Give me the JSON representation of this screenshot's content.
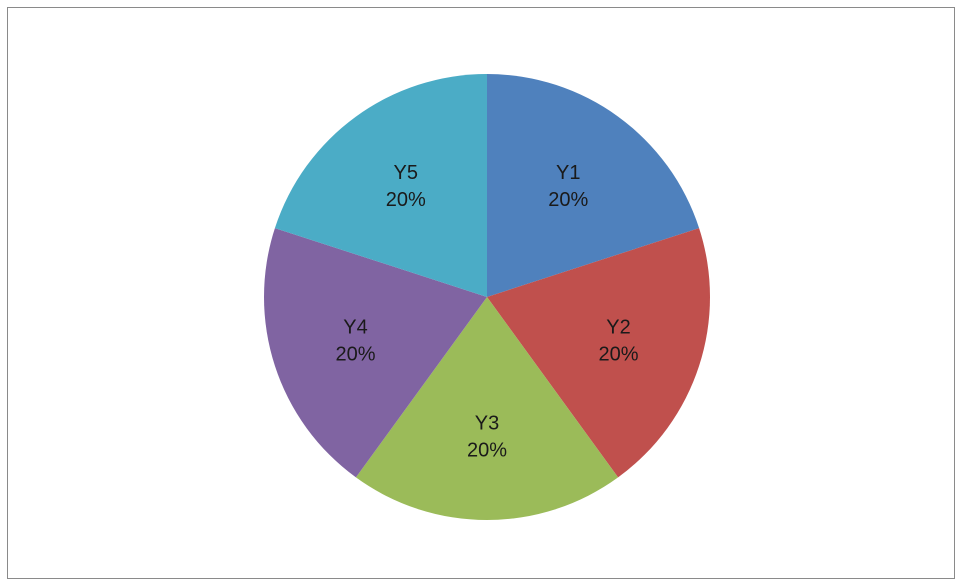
{
  "chart_data": {
    "type": "pie",
    "title": "",
    "categories": [
      "Y1",
      "Y2",
      "Y3",
      "Y4",
      "Y5"
    ],
    "values": [
      20,
      20,
      20,
      20,
      20
    ],
    "percent_labels": [
      "20%",
      "20%",
      "20%",
      "20%",
      "20%"
    ],
    "colors": [
      "#4F81BD",
      "#C0504D",
      "#9BBB59",
      "#8064A2",
      "#4BACC6"
    ],
    "legend": "none",
    "start_angle": "top, clockwise"
  }
}
